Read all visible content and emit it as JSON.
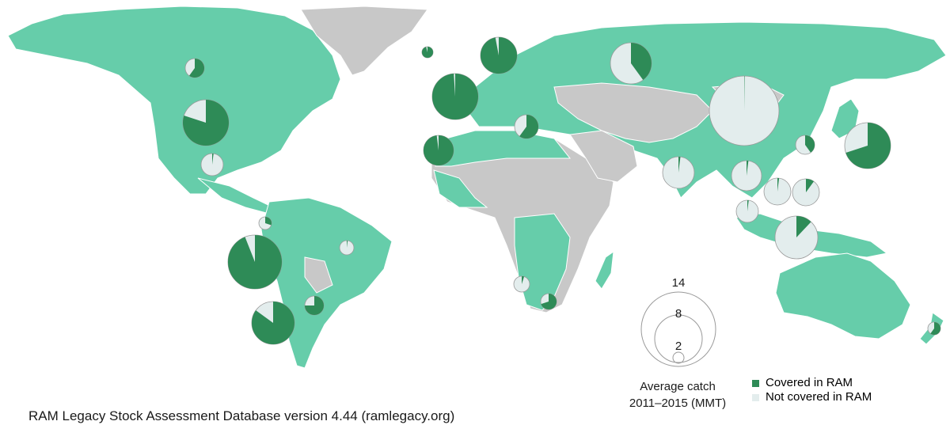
{
  "colors": {
    "ocean": "#ffffff",
    "covered_country": "#66cdaa",
    "no_data_country": "#c8c8c8",
    "covered_in_ram": "#2e8b57",
    "not_covered_in_ram": "#e3eded",
    "pie_stroke": "#9a9a9a"
  },
  "size_legend": {
    "title_line1": "Average catch",
    "title_line2": "2011–2015 (MMT)",
    "values": [
      "14",
      "8",
      "2"
    ]
  },
  "color_legend": {
    "covered_label": "Covered in RAM",
    "not_covered_label": "Not covered in RAM"
  },
  "source": "RAM Legacy Stock Assessment Database version 4.44 (ramlegacy.org)",
  "pies": [
    {
      "name": "canada",
      "covered_fraction": 0.6
    },
    {
      "name": "united-states",
      "covered_fraction": 0.8
    },
    {
      "name": "mexico",
      "covered_fraction": 0.02
    },
    {
      "name": "peru",
      "covered_fraction": 0.94
    },
    {
      "name": "chile",
      "covered_fraction": 0.85
    },
    {
      "name": "argentina",
      "covered_fraction": 0.75
    },
    {
      "name": "brazil",
      "covered_fraction": 0.02
    },
    {
      "name": "ecuador",
      "covered_fraction": 0.3
    },
    {
      "name": "iceland",
      "covered_fraction": 0.96
    },
    {
      "name": "norway",
      "covered_fraction": 0.97
    },
    {
      "name": "united-kingdom",
      "covered_fraction": 0.99
    },
    {
      "name": "morocco",
      "covered_fraction": 0.98
    },
    {
      "name": "spain",
      "covered_fraction": 0.6
    },
    {
      "name": "russia",
      "covered_fraction": 0.4
    },
    {
      "name": "china",
      "covered_fraction": 0.002
    },
    {
      "name": "japan",
      "covered_fraction": 0.7
    },
    {
      "name": "south-korea",
      "covered_fraction": 0.4
    },
    {
      "name": "india",
      "covered_fraction": 0.02
    },
    {
      "name": "indonesia",
      "covered_fraction": 0.12
    },
    {
      "name": "vietnam",
      "covered_fraction": 0.02
    },
    {
      "name": "philippines",
      "covered_fraction": 0.1
    },
    {
      "name": "thailand",
      "covered_fraction": 0.02
    },
    {
      "name": "malaysia",
      "covered_fraction": 0.02
    },
    {
      "name": "namibia",
      "covered_fraction": 0.05
    },
    {
      "name": "south-africa",
      "covered_fraction": 0.7
    },
    {
      "name": "new-zealand",
      "covered_fraction": 0.6
    }
  ]
}
